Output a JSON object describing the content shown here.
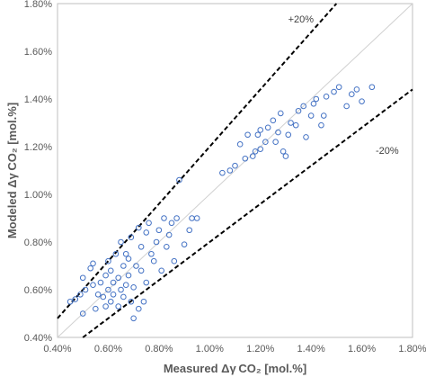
{
  "chart_data": {
    "type": "scatter",
    "title": "",
    "xlabel": "Measured Δγ CO₂ [mol.%]",
    "ylabel": "Modeled Δγ CO₂ [mol.%]",
    "xlim": [
      0.4,
      1.8
    ],
    "ylim": [
      0.4,
      1.8
    ],
    "x_ticks": [
      "0.40%",
      "0.60%",
      "0.80%",
      "1.00%",
      "1.20%",
      "1.40%",
      "1.60%",
      "1.80%"
    ],
    "y_ticks": [
      "0.40%",
      "0.60%",
      "0.80%",
      "1.00%",
      "1.20%",
      "1.40%",
      "1.60%",
      "1.80%"
    ],
    "grid": false,
    "marker_color": "#4472c4",
    "reference_lines": [
      {
        "label": "",
        "slope": 1.0,
        "style": "solid",
        "color": "#d0d0d0"
      },
      {
        "label": "+20%",
        "slope": 1.2,
        "style": "dashed",
        "color": "#000000"
      },
      {
        "label": "-20%",
        "slope": 0.8,
        "style": "dashed",
        "color": "#000000"
      }
    ],
    "series": [
      {
        "points": [
          [
            0.45,
            0.55
          ],
          [
            0.47,
            0.56
          ],
          [
            0.49,
            0.58
          ],
          [
            0.5,
            0.65
          ],
          [
            0.5,
            0.5
          ],
          [
            0.51,
            0.6
          ],
          [
            0.53,
            0.69
          ],
          [
            0.54,
            0.71
          ],
          [
            0.54,
            0.62
          ],
          [
            0.55,
            0.52
          ],
          [
            0.56,
            0.58
          ],
          [
            0.57,
            0.63
          ],
          [
            0.58,
            0.57
          ],
          [
            0.59,
            0.53
          ],
          [
            0.59,
            0.66
          ],
          [
            0.6,
            0.72
          ],
          [
            0.6,
            0.6
          ],
          [
            0.61,
            0.55
          ],
          [
            0.61,
            0.68
          ],
          [
            0.62,
            0.63
          ],
          [
            0.62,
            0.58
          ],
          [
            0.63,
            0.75
          ],
          [
            0.64,
            0.65
          ],
          [
            0.64,
            0.53
          ],
          [
            0.65,
            0.8
          ],
          [
            0.65,
            0.6
          ],
          [
            0.66,
            0.7
          ],
          [
            0.66,
            0.57
          ],
          [
            0.67,
            0.75
          ],
          [
            0.67,
            0.62
          ],
          [
            0.68,
            0.66
          ],
          [
            0.68,
            0.73
          ],
          [
            0.69,
            0.55
          ],
          [
            0.69,
            0.82
          ],
          [
            0.7,
            0.61
          ],
          [
            0.7,
            0.48
          ],
          [
            0.71,
            0.7
          ],
          [
            0.72,
            0.86
          ],
          [
            0.72,
            0.52
          ],
          [
            0.73,
            0.68
          ],
          [
            0.73,
            0.78
          ],
          [
            0.74,
            0.55
          ],
          [
            0.75,
            0.63
          ],
          [
            0.75,
            0.84
          ],
          [
            0.76,
            0.88
          ],
          [
            0.77,
            0.75
          ],
          [
            0.78,
            0.72
          ],
          [
            0.79,
            0.8
          ],
          [
            0.8,
            0.85
          ],
          [
            0.81,
            0.68
          ],
          [
            0.82,
            0.9
          ],
          [
            0.83,
            0.78
          ],
          [
            0.84,
            0.83
          ],
          [
            0.85,
            0.88
          ],
          [
            0.86,
            0.72
          ],
          [
            0.87,
            0.9
          ],
          [
            0.88,
            1.06
          ],
          [
            0.9,
            0.79
          ],
          [
            0.92,
            0.85
          ],
          [
            0.93,
            0.9
          ],
          [
            0.95,
            0.9
          ],
          [
            1.05,
            1.09
          ],
          [
            1.08,
            1.1
          ],
          [
            1.1,
            1.12
          ],
          [
            1.12,
            1.21
          ],
          [
            1.14,
            1.15
          ],
          [
            1.15,
            1.25
          ],
          [
            1.17,
            1.16
          ],
          [
            1.18,
            1.18
          ],
          [
            1.19,
            1.25
          ],
          [
            1.2,
            1.27
          ],
          [
            1.2,
            1.19
          ],
          [
            1.22,
            1.22
          ],
          [
            1.23,
            1.28
          ],
          [
            1.25,
            1.31
          ],
          [
            1.26,
            1.22
          ],
          [
            1.27,
            1.26
          ],
          [
            1.28,
            1.34
          ],
          [
            1.29,
            1.18
          ],
          [
            1.3,
            1.16
          ],
          [
            1.31,
            1.25
          ],
          [
            1.32,
            1.3
          ],
          [
            1.34,
            1.29
          ],
          [
            1.35,
            1.35
          ],
          [
            1.37,
            1.37
          ],
          [
            1.38,
            1.24
          ],
          [
            1.4,
            1.33
          ],
          [
            1.41,
            1.38
          ],
          [
            1.42,
            1.4
          ],
          [
            1.44,
            1.29
          ],
          [
            1.45,
            1.33
          ],
          [
            1.46,
            1.41
          ],
          [
            1.49,
            1.43
          ],
          [
            1.51,
            1.45
          ],
          [
            1.54,
            1.37
          ],
          [
            1.56,
            1.42
          ],
          [
            1.58,
            1.44
          ],
          [
            1.6,
            1.39
          ],
          [
            1.64,
            1.45
          ]
        ]
      }
    ]
  }
}
